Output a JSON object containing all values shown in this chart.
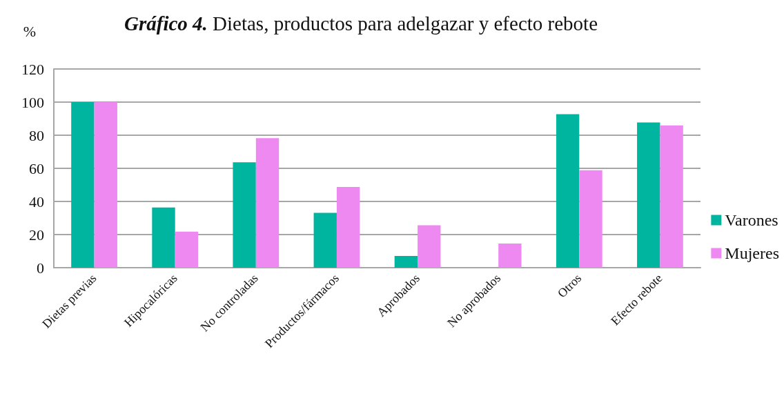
{
  "chart_data": {
    "type": "bar",
    "title": "Gráfico 4. Dietas, productos para adelgazar y efecto rebote",
    "ylabel": "%",
    "categories": [
      "Dietas previas",
      "Hipocalóricas",
      "No controladas",
      "Productos/fármacos",
      "Aprobados",
      "No aprobados",
      "Otros",
      "Efecto rebote"
    ],
    "series": [
      {
        "name": "Varones",
        "color": "#00b5a0",
        "values": [
          100,
          36.4,
          63.6,
          33.1,
          7.1,
          0,
          92.7,
          87.7
        ]
      },
      {
        "name": "Mujeres",
        "color": "#ef89f2",
        "values": [
          100,
          21.8,
          78.2,
          48.8,
          25.6,
          14.6,
          58.9,
          85.9
        ]
      }
    ],
    "ylim": [
      0,
      120
    ],
    "yticks": [
      0,
      20,
      40,
      60,
      80,
      100,
      120
    ],
    "grid": "y",
    "legend": "right"
  }
}
